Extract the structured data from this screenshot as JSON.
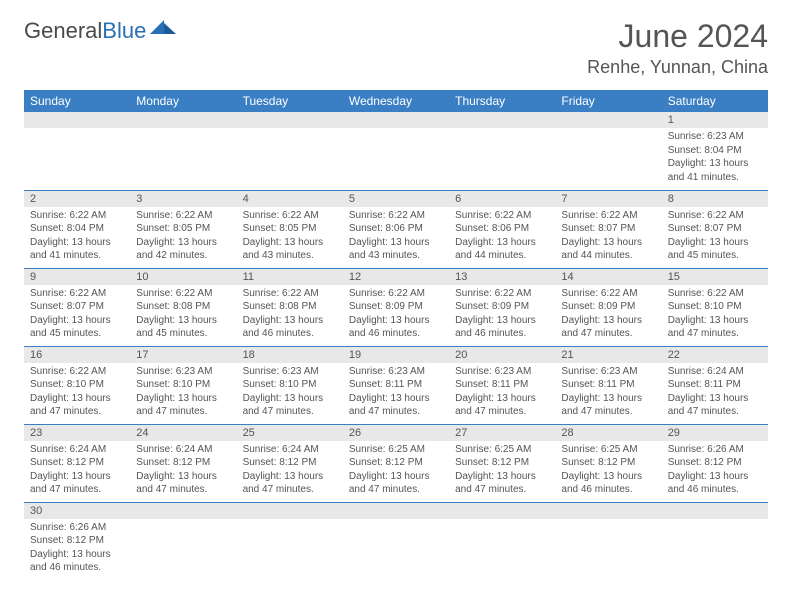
{
  "brand": {
    "part1": "General",
    "part2": "Blue"
  },
  "title": "June 2024",
  "location": "Renhe, Yunnan, China",
  "colors": {
    "header_bg": "#3a7fc4",
    "header_text": "#ffffff",
    "daynum_bg": "#e8e8e8",
    "text": "#555555",
    "border": "#3a7fc4",
    "page_bg": "#ffffff"
  },
  "layout": {
    "cols": 7,
    "rows": 6,
    "first_weekday_index": 6,
    "days_in_month": 30
  },
  "weekdays": [
    "Sunday",
    "Monday",
    "Tuesday",
    "Wednesday",
    "Thursday",
    "Friday",
    "Saturday"
  ],
  "labels": {
    "sunrise": "Sunrise:",
    "sunset": "Sunset:",
    "daylight": "Daylight:"
  },
  "days": [
    {
      "n": 1,
      "sunrise": "6:23 AM",
      "sunset": "8:04 PM",
      "daylight": "13 hours and 41 minutes."
    },
    {
      "n": 2,
      "sunrise": "6:22 AM",
      "sunset": "8:04 PM",
      "daylight": "13 hours and 41 minutes."
    },
    {
      "n": 3,
      "sunrise": "6:22 AM",
      "sunset": "8:05 PM",
      "daylight": "13 hours and 42 minutes."
    },
    {
      "n": 4,
      "sunrise": "6:22 AM",
      "sunset": "8:05 PM",
      "daylight": "13 hours and 43 minutes."
    },
    {
      "n": 5,
      "sunrise": "6:22 AM",
      "sunset": "8:06 PM",
      "daylight": "13 hours and 43 minutes."
    },
    {
      "n": 6,
      "sunrise": "6:22 AM",
      "sunset": "8:06 PM",
      "daylight": "13 hours and 44 minutes."
    },
    {
      "n": 7,
      "sunrise": "6:22 AM",
      "sunset": "8:07 PM",
      "daylight": "13 hours and 44 minutes."
    },
    {
      "n": 8,
      "sunrise": "6:22 AM",
      "sunset": "8:07 PM",
      "daylight": "13 hours and 45 minutes."
    },
    {
      "n": 9,
      "sunrise": "6:22 AM",
      "sunset": "8:07 PM",
      "daylight": "13 hours and 45 minutes."
    },
    {
      "n": 10,
      "sunrise": "6:22 AM",
      "sunset": "8:08 PM",
      "daylight": "13 hours and 45 minutes."
    },
    {
      "n": 11,
      "sunrise": "6:22 AM",
      "sunset": "8:08 PM",
      "daylight": "13 hours and 46 minutes."
    },
    {
      "n": 12,
      "sunrise": "6:22 AM",
      "sunset": "8:09 PM",
      "daylight": "13 hours and 46 minutes."
    },
    {
      "n": 13,
      "sunrise": "6:22 AM",
      "sunset": "8:09 PM",
      "daylight": "13 hours and 46 minutes."
    },
    {
      "n": 14,
      "sunrise": "6:22 AM",
      "sunset": "8:09 PM",
      "daylight": "13 hours and 47 minutes."
    },
    {
      "n": 15,
      "sunrise": "6:22 AM",
      "sunset": "8:10 PM",
      "daylight": "13 hours and 47 minutes."
    },
    {
      "n": 16,
      "sunrise": "6:22 AM",
      "sunset": "8:10 PM",
      "daylight": "13 hours and 47 minutes."
    },
    {
      "n": 17,
      "sunrise": "6:23 AM",
      "sunset": "8:10 PM",
      "daylight": "13 hours and 47 minutes."
    },
    {
      "n": 18,
      "sunrise": "6:23 AM",
      "sunset": "8:10 PM",
      "daylight": "13 hours and 47 minutes."
    },
    {
      "n": 19,
      "sunrise": "6:23 AM",
      "sunset": "8:11 PM",
      "daylight": "13 hours and 47 minutes."
    },
    {
      "n": 20,
      "sunrise": "6:23 AM",
      "sunset": "8:11 PM",
      "daylight": "13 hours and 47 minutes."
    },
    {
      "n": 21,
      "sunrise": "6:23 AM",
      "sunset": "8:11 PM",
      "daylight": "13 hours and 47 minutes."
    },
    {
      "n": 22,
      "sunrise": "6:24 AM",
      "sunset": "8:11 PM",
      "daylight": "13 hours and 47 minutes."
    },
    {
      "n": 23,
      "sunrise": "6:24 AM",
      "sunset": "8:12 PM",
      "daylight": "13 hours and 47 minutes."
    },
    {
      "n": 24,
      "sunrise": "6:24 AM",
      "sunset": "8:12 PM",
      "daylight": "13 hours and 47 minutes."
    },
    {
      "n": 25,
      "sunrise": "6:24 AM",
      "sunset": "8:12 PM",
      "daylight": "13 hours and 47 minutes."
    },
    {
      "n": 26,
      "sunrise": "6:25 AM",
      "sunset": "8:12 PM",
      "daylight": "13 hours and 47 minutes."
    },
    {
      "n": 27,
      "sunrise": "6:25 AM",
      "sunset": "8:12 PM",
      "daylight": "13 hours and 47 minutes."
    },
    {
      "n": 28,
      "sunrise": "6:25 AM",
      "sunset": "8:12 PM",
      "daylight": "13 hours and 46 minutes."
    },
    {
      "n": 29,
      "sunrise": "6:26 AM",
      "sunset": "8:12 PM",
      "daylight": "13 hours and 46 minutes."
    },
    {
      "n": 30,
      "sunrise": "6:26 AM",
      "sunset": "8:12 PM",
      "daylight": "13 hours and 46 minutes."
    }
  ]
}
